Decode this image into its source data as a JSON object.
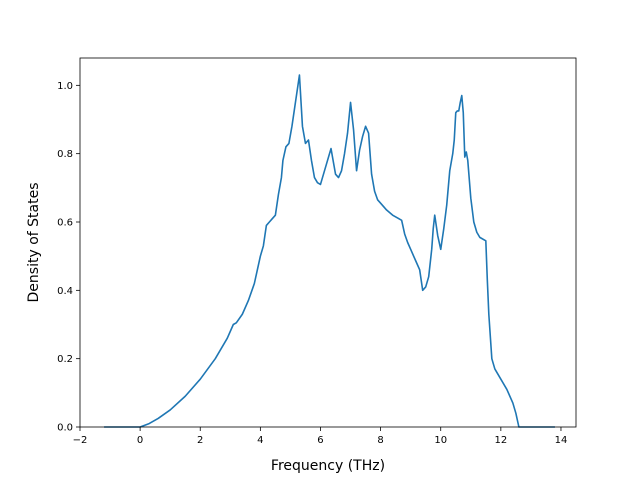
{
  "chart_data": {
    "type": "line",
    "title": "",
    "xlabel": "Frequency (THz)",
    "ylabel": "Density of States",
    "xlim": [
      -2,
      14.5
    ],
    "ylim": [
      0,
      1.08
    ],
    "xticks": [
      -2,
      0,
      2,
      4,
      6,
      8,
      10,
      12,
      14
    ],
    "yticks": [
      0.0,
      0.2,
      0.4,
      0.6,
      0.8,
      1.0
    ],
    "xtick_labels": [
      "−2",
      "0",
      "2",
      "4",
      "6",
      "8",
      "10",
      "12",
      "14"
    ],
    "ytick_labels": [
      "0.0",
      "0.2",
      "0.4",
      "0.6",
      "0.8",
      "1.0"
    ],
    "grid": false,
    "line_color": "#1f77b4",
    "series": [
      {
        "x": [
          -1.2,
          -0.5,
          0.0,
          0.3,
          0.6,
          1.0,
          1.5,
          2.0,
          2.5,
          2.9,
          3.1,
          3.2,
          3.4,
          3.6,
          3.8,
          3.9,
          4.0,
          4.1,
          4.15,
          4.2,
          4.3,
          4.4,
          4.5,
          4.6,
          4.7,
          4.75,
          4.85,
          4.95,
          5.05,
          5.15,
          5.25,
          5.3,
          5.4,
          5.5,
          5.6,
          5.7,
          5.8,
          5.9,
          6.0,
          6.1,
          6.2,
          6.3,
          6.35,
          6.4,
          6.5,
          6.6,
          6.7,
          6.8,
          6.9,
          7.0,
          7.1,
          7.2,
          7.3,
          7.4,
          7.5,
          7.6,
          7.7,
          7.8,
          7.9,
          8.0,
          8.2,
          8.4,
          8.6,
          8.7,
          8.8,
          8.9,
          9.0,
          9.1,
          9.2,
          9.3,
          9.4,
          9.5,
          9.6,
          9.7,
          9.75,
          9.8,
          9.9,
          10.0,
          10.1,
          10.2,
          10.3,
          10.4,
          10.45,
          10.5,
          10.55,
          10.6,
          10.65,
          10.7,
          10.75,
          10.8,
          10.85,
          10.9,
          11.0,
          11.1,
          11.2,
          11.3,
          11.5,
          11.55,
          11.6,
          11.7,
          11.8,
          12.0,
          12.2,
          12.4,
          12.5,
          12.6,
          13.0,
          13.8
        ],
        "y": [
          0.0,
          0.0,
          0.0,
          0.01,
          0.025,
          0.05,
          0.09,
          0.14,
          0.2,
          0.26,
          0.3,
          0.305,
          0.33,
          0.37,
          0.42,
          0.46,
          0.5,
          0.53,
          0.56,
          0.59,
          0.6,
          0.61,
          0.62,
          0.68,
          0.73,
          0.78,
          0.82,
          0.83,
          0.88,
          0.94,
          1.0,
          1.03,
          0.88,
          0.83,
          0.84,
          0.78,
          0.73,
          0.715,
          0.71,
          0.74,
          0.77,
          0.8,
          0.815,
          0.79,
          0.74,
          0.73,
          0.75,
          0.8,
          0.86,
          0.95,
          0.87,
          0.75,
          0.81,
          0.85,
          0.88,
          0.86,
          0.74,
          0.69,
          0.665,
          0.655,
          0.635,
          0.62,
          0.61,
          0.605,
          0.565,
          0.54,
          0.52,
          0.5,
          0.48,
          0.46,
          0.4,
          0.41,
          0.44,
          0.52,
          0.58,
          0.62,
          0.56,
          0.52,
          0.58,
          0.65,
          0.75,
          0.8,
          0.84,
          0.92,
          0.925,
          0.925,
          0.95,
          0.97,
          0.92,
          0.79,
          0.805,
          0.78,
          0.67,
          0.6,
          0.57,
          0.555,
          0.545,
          0.43,
          0.33,
          0.2,
          0.17,
          0.14,
          0.11,
          0.07,
          0.04,
          0.0,
          0.0,
          0.0
        ]
      }
    ]
  }
}
